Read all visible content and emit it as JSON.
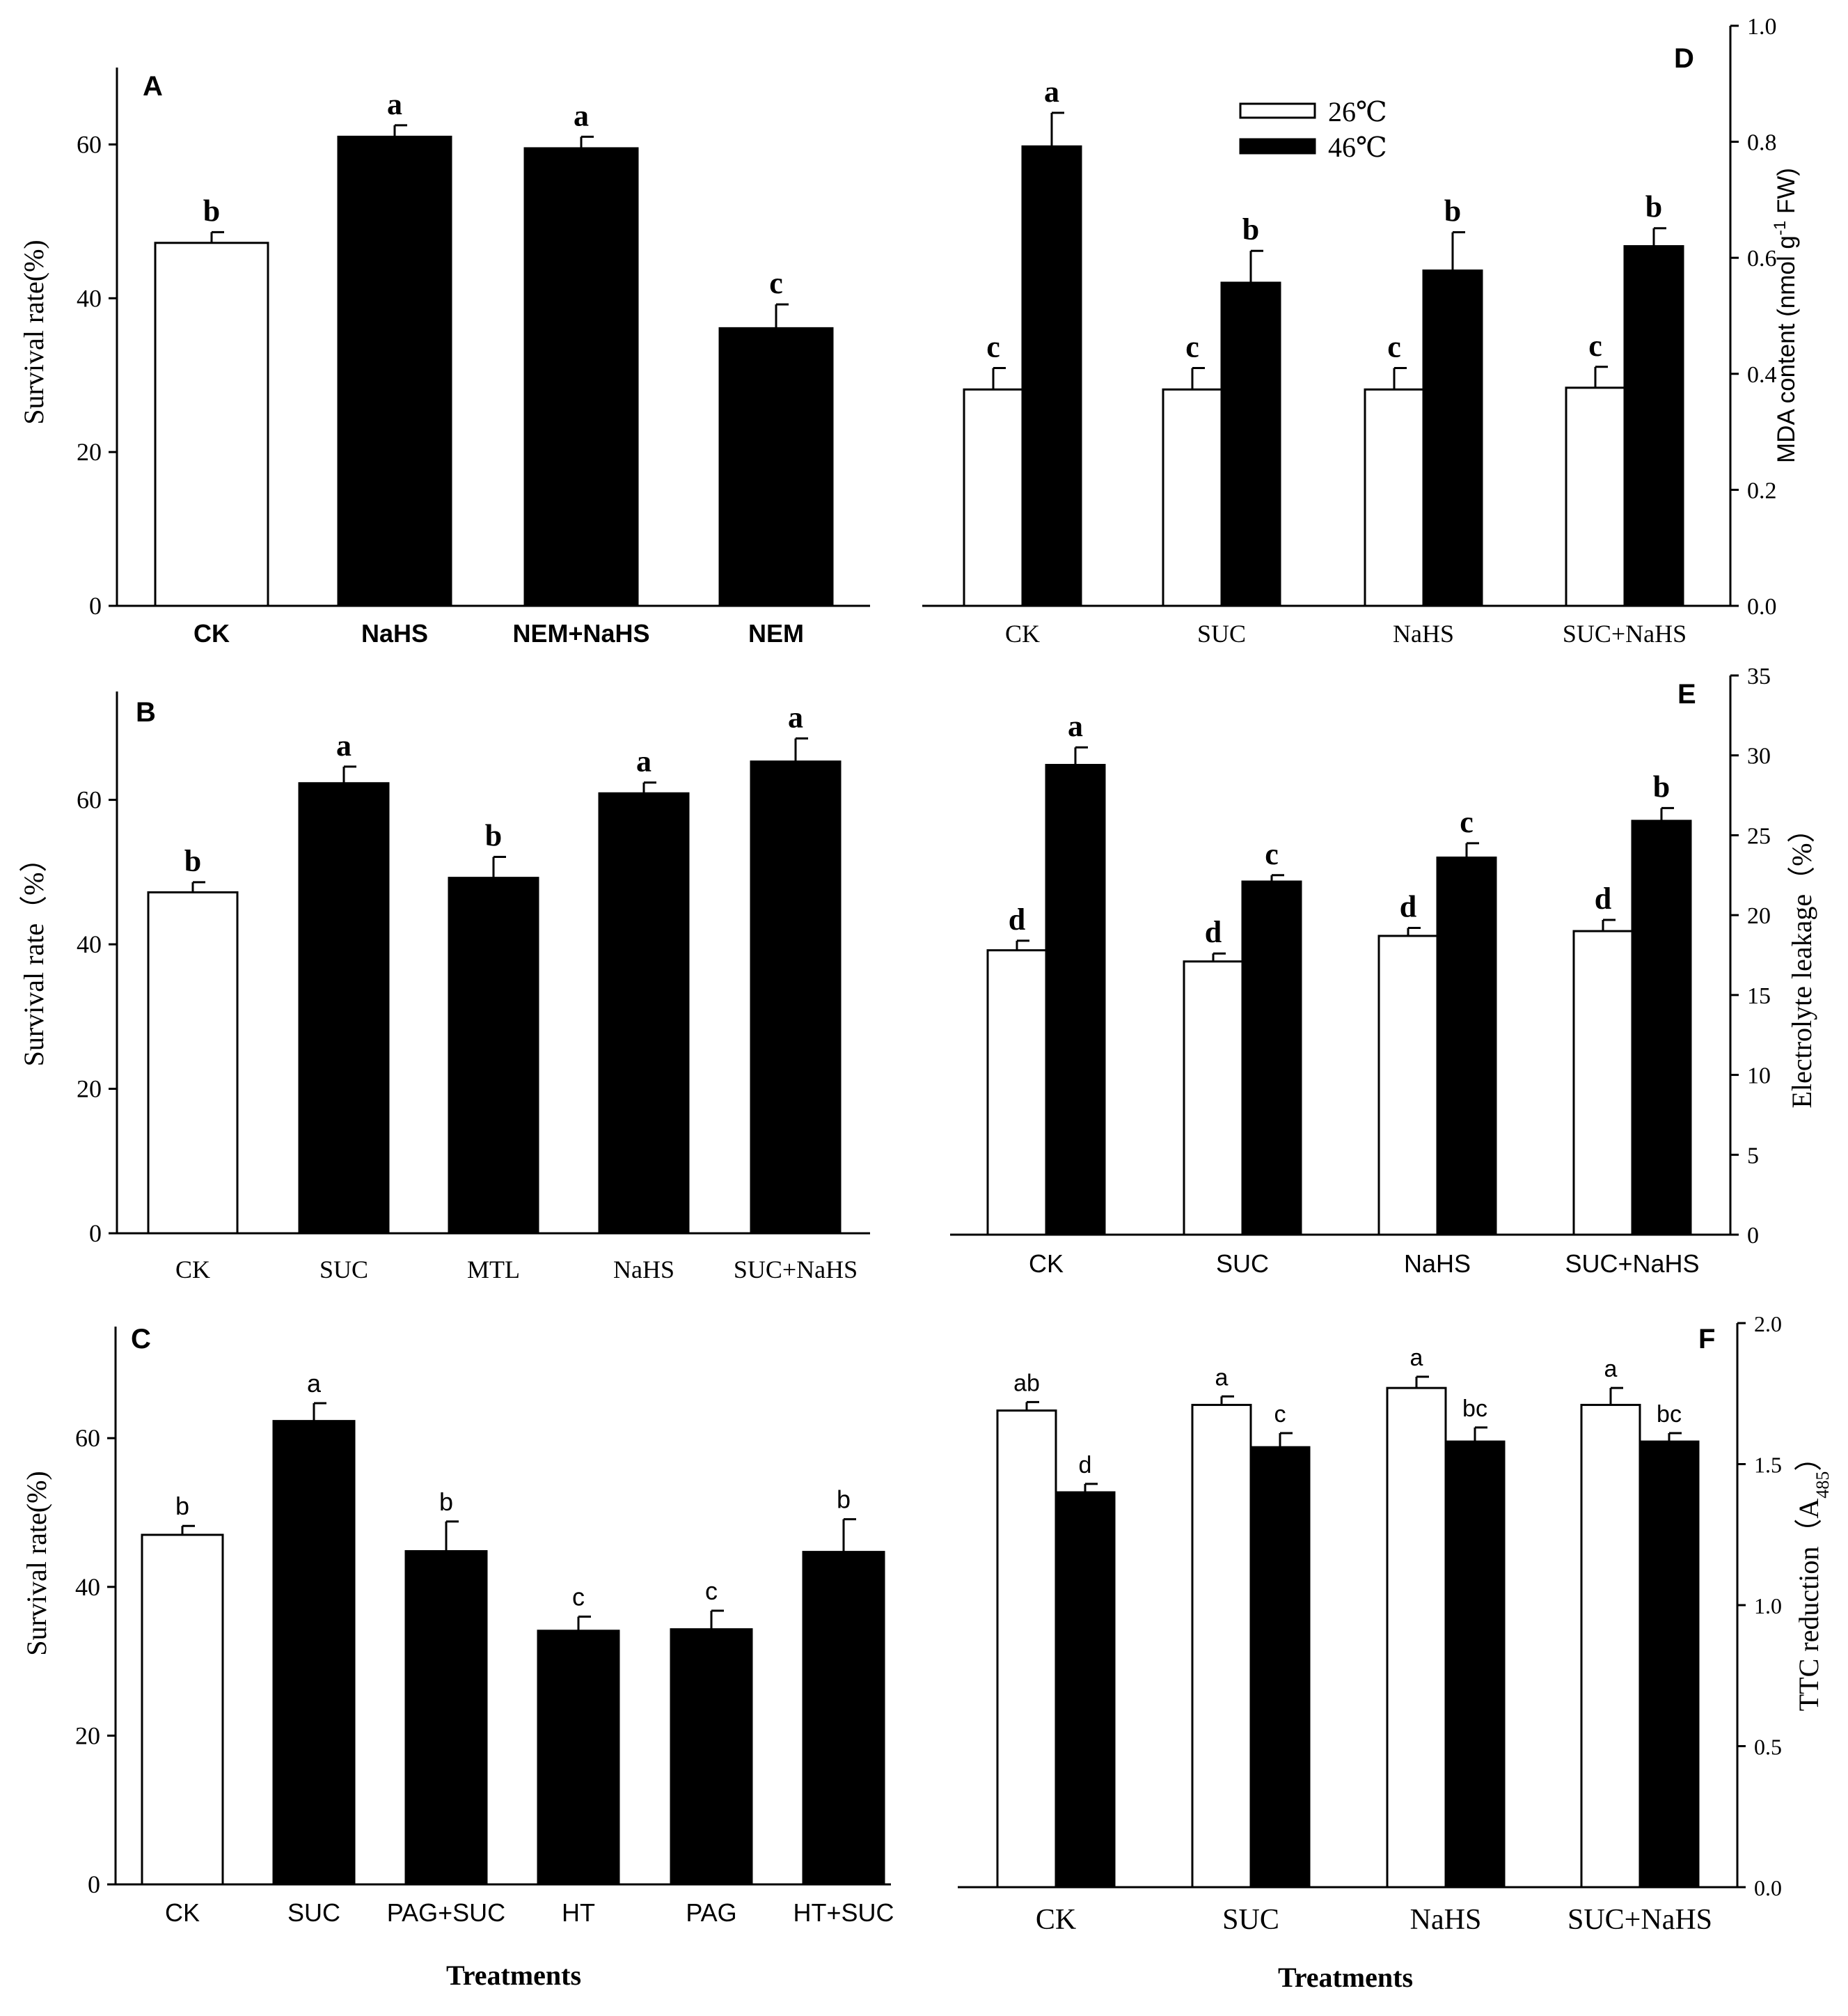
{
  "legend": {
    "items": [
      {
        "label": "26℃",
        "fill": "#ffffff"
      },
      {
        "label": "46℃",
        "fill": "#000000"
      }
    ]
  },
  "colors": {
    "open_bar": "#ffffff",
    "filled_bar": "#000000",
    "axis": "#000000"
  },
  "chart_data": [
    {
      "panel": "A",
      "type": "bar",
      "categories": [
        "CK",
        "NaHS",
        "NEM+NaHS",
        "NEM"
      ],
      "values": [
        47.2,
        61.0,
        59.5,
        36.1
      ],
      "errors": [
        1.4,
        1.5,
        1.5,
        3.1
      ],
      "letters": [
        "b",
        "a",
        "a",
        "c"
      ],
      "fills": [
        "#ffffff",
        "#000000",
        "#000000",
        "#000000"
      ],
      "ylabel": "Survival rate(%)",
      "xlabel": "",
      "ylim": [
        0,
        70
      ],
      "yticks": [
        "0",
        "20",
        "40",
        "60"
      ]
    },
    {
      "panel": "B",
      "type": "bar",
      "categories": [
        "CK",
        "SUC",
        "MTL",
        "NaHS",
        "SUC+NaHS"
      ],
      "values": [
        47.2,
        62.3,
        49.2,
        60.9,
        65.3
      ],
      "errors": [
        1.4,
        2.3,
        2.9,
        1.5,
        3.2
      ],
      "letters": [
        "b",
        "a",
        "b",
        "a",
        "a"
      ],
      "fills": [
        "#ffffff",
        "#000000",
        "#000000",
        "#000000",
        "#000000"
      ],
      "ylabel": "Survival rate（%）",
      "xlabel": "",
      "ylim": [
        0,
        75
      ],
      "yticks": [
        "0",
        "20",
        "40",
        "60"
      ]
    },
    {
      "panel": "C",
      "type": "bar",
      "categories": [
        "CK",
        "SUC",
        "PAG+SUC",
        "HT",
        "PAG",
        "HT+SUC"
      ],
      "values": [
        47.0,
        62.3,
        44.8,
        34.1,
        34.3,
        44.7
      ],
      "errors": [
        1.2,
        2.4,
        4.0,
        1.9,
        2.5,
        4.4
      ],
      "letters": [
        "b",
        "a",
        "b",
        "c",
        "c",
        "b"
      ],
      "fills": [
        "#ffffff",
        "#000000",
        "#000000",
        "#000000",
        "#000000",
        "#000000"
      ],
      "ylabel": "Survival rate(%)",
      "xlabel": "Treatments",
      "ylim": [
        0,
        75
      ],
      "yticks": [
        "0",
        "20",
        "40",
        "60"
      ]
    },
    {
      "panel": "D",
      "type": "bar",
      "categories": [
        "CK",
        "SUC",
        "NaHS",
        "SUC+NaHS"
      ],
      "series": [
        {
          "name": "26℃",
          "values": [
            0.373,
            0.373,
            0.373,
            0.376
          ],
          "errors": [
            0.037,
            0.037,
            0.037,
            0.036
          ],
          "letters": [
            "c",
            "c",
            "c",
            "c"
          ]
        },
        {
          "name": "46℃",
          "values": [
            0.792,
            0.557,
            0.578,
            0.62
          ],
          "errors": [
            0.058,
            0.055,
            0.066,
            0.031
          ],
          "letters": [
            "a",
            "b",
            "b",
            "b"
          ]
        }
      ],
      "ylabel": "MDA content (nmol g⁻¹ FW)",
      "xlabel": "",
      "ylim": [
        0,
        1.0
      ],
      "yticks": [
        "0.0",
        "0.2",
        "0.4",
        "0.6",
        "0.8",
        "1.0"
      ]
    },
    {
      "panel": "E",
      "type": "bar",
      "categories": [
        "CK",
        "SUC",
        "NaHS",
        "SUC+NaHS"
      ],
      "series": [
        {
          "name": "26℃",
          "values": [
            17.8,
            17.1,
            18.7,
            19.0
          ],
          "errors": [
            0.6,
            0.5,
            0.5,
            0.7
          ],
          "letters": [
            "d",
            "d",
            "d",
            "d"
          ]
        },
        {
          "name": "46℃",
          "values": [
            29.4,
            22.1,
            23.6,
            25.9
          ],
          "errors": [
            1.1,
            0.4,
            0.9,
            0.8
          ],
          "letters": [
            "a",
            "c",
            "c",
            "b"
          ]
        }
      ],
      "ylabel": "Electrolyte leakage（%）",
      "xlabel": "",
      "ylim": [
        0,
        35
      ],
      "yticks": [
        "0",
        "5",
        "10",
        "15",
        "20",
        "25",
        "30",
        "35"
      ]
    },
    {
      "panel": "F",
      "type": "bar",
      "categories": [
        "CK",
        "SUC",
        "NaHS",
        "SUC+NaHS"
      ],
      "series": [
        {
          "name": "26℃",
          "values": [
            1.69,
            1.71,
            1.77,
            1.71
          ],
          "errors": [
            0.03,
            0.03,
            0.04,
            0.06
          ],
          "letters": [
            "ab",
            "a",
            "a",
            "a"
          ]
        },
        {
          "name": "46℃",
          "values": [
            1.4,
            1.56,
            1.58,
            1.58
          ],
          "errors": [
            0.03,
            0.05,
            0.05,
            0.03
          ],
          "letters": [
            "d",
            "c",
            "bc",
            "bc"
          ]
        }
      ],
      "ylabel": "TTC reduction（A485）",
      "xlabel": "Treatments",
      "ylim": [
        0,
        2.0
      ],
      "yticks": [
        "0.0",
        "0.5",
        "1.0",
        "1.5",
        "2.0"
      ]
    }
  ]
}
